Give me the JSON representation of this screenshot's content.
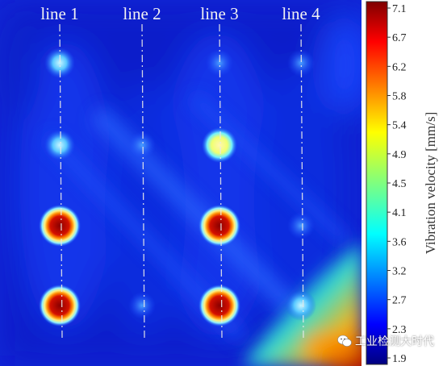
{
  "chart_data": {
    "type": "heatmap",
    "scan_lines": [
      "line 1",
      "line 2",
      "line 3",
      "line 4"
    ],
    "colorbar": {
      "label": "Vibration velocity [mm/s]",
      "min": 1.9,
      "max": 7.1,
      "ticks": [
        "7.1",
        "6.7",
        "6.2",
        "5.8",
        "5.4",
        "4.9",
        "4.5",
        "4.1",
        "3.6",
        "3.2",
        "2.7",
        "2.3",
        "1.9"
      ],
      "colormap": "jet"
    },
    "hotspots": [
      {
        "line": "line 1",
        "row": 1,
        "value": 3.6
      },
      {
        "line": "line 1",
        "row": 2,
        "value": 3.8
      },
      {
        "line": "line 1",
        "row": 3,
        "value": 7.0
      },
      {
        "line": "line 1",
        "row": 4,
        "value": 7.1
      },
      {
        "line": "line 2",
        "row": 2,
        "value": 3.0
      },
      {
        "line": "line 2",
        "row": 4,
        "value": 2.8
      },
      {
        "line": "line 3",
        "row": 1,
        "value": 3.0
      },
      {
        "line": "line 3",
        "row": 2,
        "value": 4.8
      },
      {
        "line": "line 3",
        "row": 3,
        "value": 7.1
      },
      {
        "line": "line 3",
        "row": 4,
        "value": 7.0
      },
      {
        "line": "line 4",
        "row": 1,
        "value": 3.0
      },
      {
        "line": "line 4",
        "row": 3,
        "value": 2.9
      },
      {
        "line": "line 4",
        "row": 4,
        "value": 3.8
      }
    ]
  },
  "watermark": {
    "text": "工业检测大时代",
    "icon": "wechat-icon"
  }
}
